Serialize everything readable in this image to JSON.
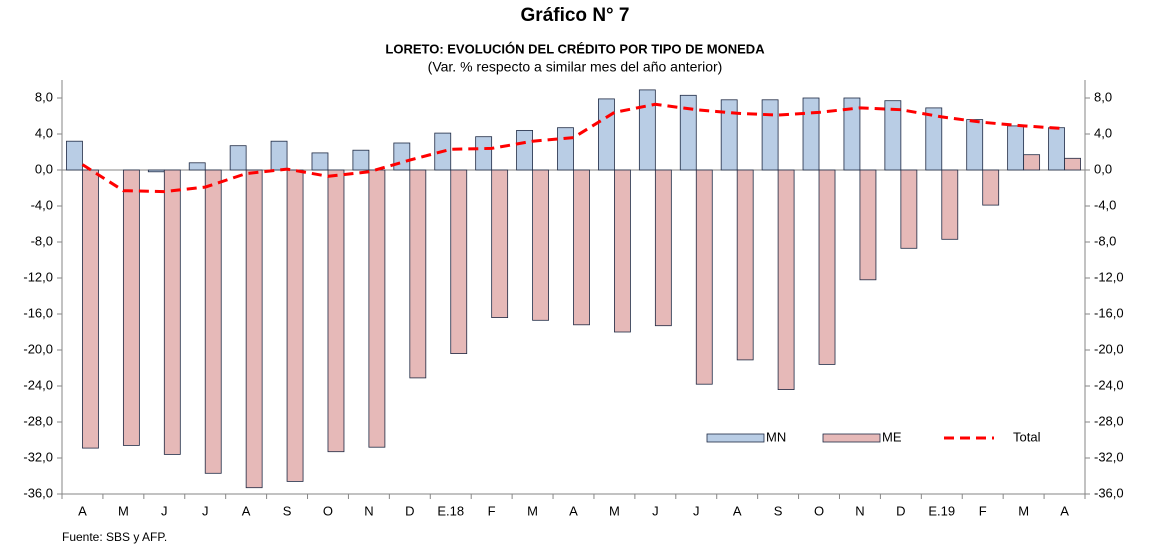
{
  "chart_data": {
    "type": "bar",
    "title": "Gráfico N° 7",
    "subtitle": "LORETO: EVOLUCIÓN DEL CRÉDITO POR TIPO DE MONEDA",
    "note": "(Var. % respecto a similar mes del año anterior)",
    "source": "Fuente: SBS y AFP.",
    "categories": [
      "A",
      "M",
      "J",
      "J",
      "A",
      "S",
      "O",
      "N",
      "D",
      "E.18",
      "F",
      "M",
      "A",
      "M",
      "J",
      "J",
      "A",
      "S",
      "O",
      "N",
      "D",
      "E.19",
      "F",
      "M",
      "A"
    ],
    "series": [
      {
        "name": "MN",
        "type": "bar",
        "color": "#b9cde5",
        "values": [
          3.2,
          0,
          -0.2,
          0.8,
          2.7,
          3.2,
          1.9,
          2.2,
          3.0,
          4.1,
          3.7,
          4.4,
          4.7,
          7.9,
          8.9,
          8.3,
          7.8,
          7.8,
          8.0,
          8.0,
          7.7,
          6.9,
          5.6,
          4.9,
          4.7
        ]
      },
      {
        "name": "ME",
        "type": "bar",
        "color": "#e6b9b8",
        "values": [
          -30.9,
          -30.6,
          -31.6,
          -33.7,
          -35.3,
          -34.6,
          -31.3,
          -30.8,
          -23.1,
          -20.4,
          -16.4,
          -16.7,
          -17.2,
          -18.0,
          -17.3,
          -23.8,
          -21.1,
          -24.4,
          -21.6,
          -12.2,
          -8.7,
          -7.7,
          -3.9,
          1.7,
          1.3
        ]
      },
      {
        "name": "Total",
        "type": "line",
        "color": "#ff0000",
        "values": [
          0.6,
          -2.3,
          -2.4,
          -1.9,
          -0.4,
          0.1,
          -0.7,
          -0.2,
          1.1,
          2.3,
          2.4,
          3.2,
          3.6,
          6.4,
          7.3,
          6.7,
          6.3,
          6.1,
          6.4,
          6.9,
          6.7,
          5.9,
          5.3,
          4.9,
          4.6
        ]
      }
    ],
    "ylim": [
      -36,
      10
    ],
    "yticks": [
      {
        "value": -36,
        "label": "-36,0"
      },
      {
        "value": -32,
        "label": "-32,0"
      },
      {
        "value": -28,
        "label": "-28,0"
      },
      {
        "value": -24,
        "label": "-24,0"
      },
      {
        "value": -20,
        "label": "-20,0"
      },
      {
        "value": -16,
        "label": "-16,0"
      },
      {
        "value": -12,
        "label": "-12,0"
      },
      {
        "value": -8,
        "label": "-8,0"
      },
      {
        "value": -4,
        "label": "-4,0"
      },
      {
        "value": 0,
        "label": "0,0"
      },
      {
        "value": 4,
        "label": "4,0"
      },
      {
        "value": 8,
        "label": "8,0"
      }
    ],
    "y2lim": [
      -36,
      10
    ],
    "y2ticks": [
      {
        "value": -36,
        "label": "-36,0"
      },
      {
        "value": -32,
        "label": "-32,0"
      },
      {
        "value": -28,
        "label": "-28,0"
      },
      {
        "value": -24,
        "label": "-24,0"
      },
      {
        "value": -20,
        "label": "-20,0"
      },
      {
        "value": -16,
        "label": "-16,0"
      },
      {
        "value": -12,
        "label": "-12,0"
      },
      {
        "value": -8,
        "label": "-8,0"
      },
      {
        "value": -4,
        "label": "-4,0"
      },
      {
        "value": 0,
        "label": "0,0"
      },
      {
        "value": 4,
        "label": "4,0"
      },
      {
        "value": 8,
        "label": "8,0"
      }
    ],
    "grid": false,
    "legend": "bottom-right"
  }
}
